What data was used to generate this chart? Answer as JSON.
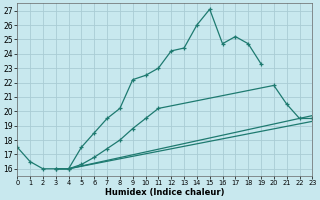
{
  "xlabel": "Humidex (Indice chaleur)",
  "bg_color": "#c8e8ee",
  "grid_color": "#b0d0d8",
  "line_color": "#1e7a70",
  "xlim": [
    0,
    23
  ],
  "ylim": [
    15.5,
    27.5
  ],
  "xticks": [
    0,
    1,
    2,
    3,
    4,
    5,
    6,
    7,
    8,
    9,
    10,
    11,
    12,
    13,
    14,
    15,
    16,
    17,
    18,
    19,
    20,
    21,
    22,
    23
  ],
  "yticks": [
    16,
    17,
    18,
    19,
    20,
    21,
    22,
    23,
    24,
    25,
    26,
    27
  ],
  "line1_x": [
    0,
    1,
    2,
    3,
    4,
    5,
    6,
    7,
    8,
    9,
    10,
    11,
    12,
    13,
    14,
    15,
    16,
    17,
    18,
    19
  ],
  "line1_y": [
    17.5,
    16.5,
    16.0,
    16.0,
    16.0,
    17.5,
    18.5,
    19.5,
    20.2,
    22.2,
    22.5,
    23.0,
    24.2,
    24.4,
    26.0,
    27.1,
    24.7,
    25.2,
    24.7,
    23.3
  ],
  "line2_x": [
    3,
    4,
    5,
    6,
    7,
    8,
    9,
    10,
    11,
    20,
    21,
    22,
    23
  ],
  "line2_y": [
    16.0,
    16.0,
    16.3,
    16.8,
    17.4,
    18.0,
    18.8,
    19.5,
    20.2,
    21.8,
    20.5,
    19.5,
    19.5
  ],
  "line3_x": [
    3,
    4,
    23
  ],
  "line3_y": [
    16.0,
    16.0,
    19.3
  ],
  "line4_x": [
    3,
    4,
    23
  ],
  "line4_y": [
    16.0,
    16.0,
    19.7
  ]
}
